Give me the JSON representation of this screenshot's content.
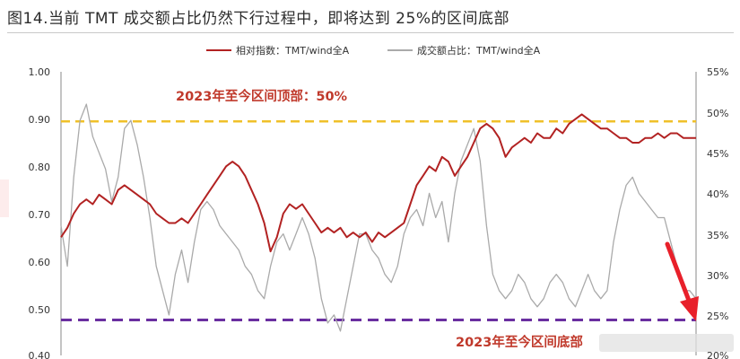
{
  "figure": {
    "title": "图14.当前 TMT 成交额占比仍然下行过程中，即将达到 25%的区间底部"
  },
  "chart_data": {
    "type": "line",
    "title": "图14.当前 TMT 成交额占比仍然下行过程中，即将达到 25%的区间底部",
    "legend_position": "top-center",
    "grid": false,
    "y_left": {
      "ylim": [
        0.4,
        1.0
      ],
      "ticks": [
        "1.00",
        "0.90",
        "0.80",
        "0.70",
        "0.60",
        "0.50",
        "0.40"
      ]
    },
    "y_right": {
      "ylim": [
        20,
        55
      ],
      "unit": "%",
      "ticks": [
        "55%",
        "50%",
        "45%",
        "40%",
        "35%",
        "30%",
        "25%",
        "20%"
      ]
    },
    "x_range": [
      0,
      100
    ],
    "series": [
      {
        "name": "相对指数：TMT/wind全A",
        "axis": "left",
        "color": "#b22222",
        "x": [
          0,
          1,
          2,
          3,
          4,
          5,
          6,
          7,
          8,
          9,
          10,
          11,
          12,
          13,
          14,
          15,
          16,
          17,
          18,
          19,
          20,
          21,
          22,
          23,
          24,
          25,
          26,
          27,
          28,
          29,
          30,
          31,
          32,
          33,
          34,
          35,
          36,
          37,
          38,
          39,
          40,
          41,
          42,
          43,
          44,
          45,
          46,
          47,
          48,
          49,
          50,
          51,
          52,
          53,
          54,
          55,
          56,
          57,
          58,
          59,
          60,
          61,
          62,
          63,
          64,
          65,
          66,
          67,
          68,
          69,
          70,
          71,
          72,
          73,
          74,
          75,
          76,
          77,
          78,
          79,
          80,
          81,
          82,
          83,
          84,
          85,
          86,
          87,
          88,
          89,
          90,
          91,
          92,
          93,
          94,
          95,
          96,
          97,
          98,
          99,
          100
        ],
        "values": [
          0.65,
          0.67,
          0.7,
          0.72,
          0.73,
          0.72,
          0.74,
          0.73,
          0.72,
          0.75,
          0.76,
          0.75,
          0.74,
          0.73,
          0.72,
          0.7,
          0.69,
          0.68,
          0.68,
          0.69,
          0.68,
          0.7,
          0.72,
          0.74,
          0.76,
          0.78,
          0.8,
          0.81,
          0.8,
          0.78,
          0.75,
          0.72,
          0.68,
          0.62,
          0.65,
          0.7,
          0.72,
          0.71,
          0.72,
          0.7,
          0.68,
          0.66,
          0.67,
          0.66,
          0.67,
          0.65,
          0.66,
          0.65,
          0.66,
          0.64,
          0.66,
          0.65,
          0.66,
          0.67,
          0.68,
          0.72,
          0.76,
          0.78,
          0.8,
          0.79,
          0.82,
          0.81,
          0.78,
          0.8,
          0.82,
          0.85,
          0.88,
          0.89,
          0.88,
          0.86,
          0.82,
          0.84,
          0.85,
          0.86,
          0.85,
          0.87,
          0.86,
          0.86,
          0.88,
          0.87,
          0.89,
          0.9,
          0.91,
          0.9,
          0.89,
          0.88,
          0.88,
          0.87,
          0.86,
          0.86,
          0.85,
          0.85,
          0.86,
          0.86,
          0.87,
          0.86,
          0.87,
          0.87,
          0.86,
          0.86,
          0.86
        ]
      },
      {
        "name": "成交额占比：TMT/wind全A",
        "axis": "right",
        "color": "#aaaaaa",
        "x": [
          0,
          1,
          2,
          3,
          4,
          5,
          6,
          7,
          8,
          9,
          10,
          11,
          12,
          13,
          14,
          15,
          16,
          17,
          18,
          19,
          20,
          21,
          22,
          23,
          24,
          25,
          26,
          27,
          28,
          29,
          30,
          31,
          32,
          33,
          34,
          35,
          36,
          37,
          38,
          39,
          40,
          41,
          42,
          43,
          44,
          45,
          46,
          47,
          48,
          49,
          50,
          51,
          52,
          53,
          54,
          55,
          56,
          57,
          58,
          59,
          60,
          61,
          62,
          63,
          64,
          65,
          66,
          67,
          68,
          69,
          70,
          71,
          72,
          73,
          74,
          75,
          76,
          77,
          78,
          79,
          80,
          81,
          82,
          83,
          84,
          85,
          86,
          87,
          88,
          89,
          90,
          91,
          92,
          93,
          94,
          95,
          96,
          97,
          98,
          99,
          100
        ],
        "values": [
          36,
          31,
          42,
          49,
          51,
          47,
          45,
          43,
          39,
          42,
          48,
          49,
          46,
          42,
          37,
          31,
          28,
          25,
          30,
          33,
          29,
          34,
          38,
          39,
          38,
          36,
          35,
          34,
          33,
          31,
          30,
          28,
          27,
          31,
          34,
          35,
          33,
          35,
          37,
          35,
          32,
          27,
          24,
          25,
          23,
          27,
          31,
          35,
          35,
          33,
          32,
          30,
          29,
          31,
          35,
          37,
          38,
          36,
          40,
          37,
          39,
          34,
          40,
          44,
          46,
          48,
          44,
          36,
          30,
          28,
          27,
          28,
          30,
          29,
          27,
          26,
          27,
          29,
          30,
          29,
          27,
          26,
          28,
          30,
          28,
          27,
          28,
          34,
          38,
          41,
          42,
          40,
          39,
          38,
          37,
          37,
          34,
          31,
          28,
          28,
          27
        ]
      }
    ],
    "reference_lines": [
      {
        "label": "2023年至今区间顶部：50%",
        "value": 0.895,
        "axis": "left",
        "color": "#f0c02a",
        "style": "dashed"
      },
      {
        "label": "2023年至今区间底部",
        "value": 0.475,
        "axis": "left",
        "color": "#6a2fa0",
        "style": "dashed"
      }
    ],
    "annotation_colors": {
      "top": "#c0392b",
      "bottom": "#c0392b",
      "arrow": "#e8202a"
    }
  }
}
